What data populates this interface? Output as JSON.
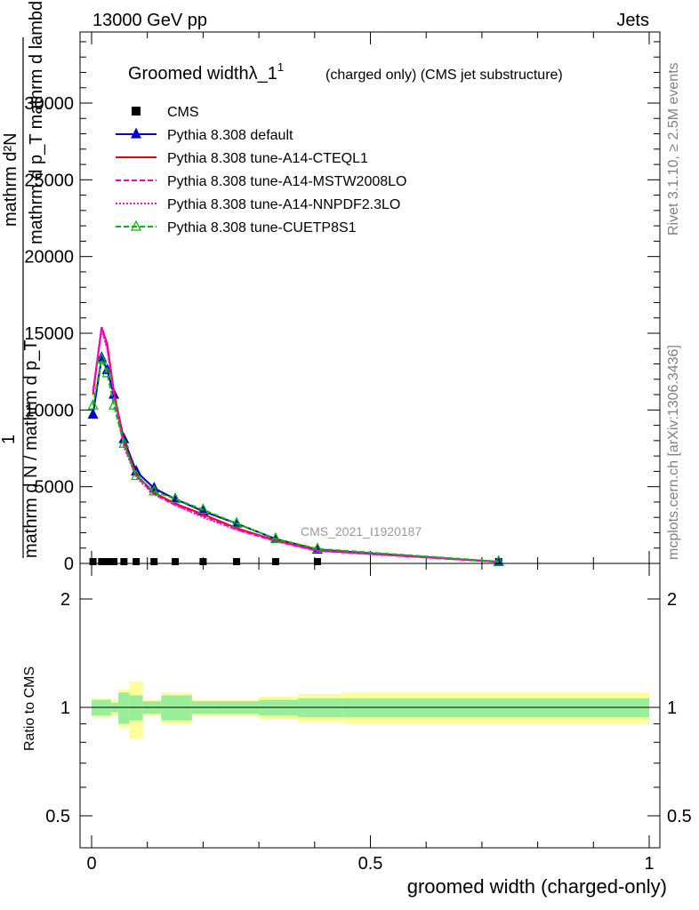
{
  "header": {
    "energy_label": "13000 GeV pp",
    "category_label": "Jets"
  },
  "side": {
    "rivet_label": "Rivet 3.1.10, ≥ 2.5M events",
    "mcplots_label": "mcplots.cern.ch [arXiv:1306.3436]"
  },
  "chart_data": {
    "type": "line",
    "title": "Groomed widthλ_1",
    "title_sup": "1",
    "subtitle": "(charged only) (CMS jet substructure)",
    "watermark": "CMS_2021_I1920187",
    "xlabel": "groomed width (charged-only)",
    "ylabel_top": "mathrm d²N",
    "ylabel_top2": "mathrm d p_T mathrm d lambda",
    "ylabel_unit": "1",
    "ylabel_bottom": "mathrm d N / mathrm d p_T",
    "ratio_ylabel": "Ratio to CMS",
    "xlim": [
      -0.025,
      1.0
    ],
    "ylim": [
      0,
      35000
    ],
    "ratio_ylim": [
      0.4,
      2.4
    ],
    "x_ticks": [
      "0",
      "0.5",
      "1"
    ],
    "y_ticks": [
      "0",
      "5000",
      "10000",
      "15000",
      "20000",
      "25000",
      "30000"
    ],
    "ratio_ticks": [
      "0.5",
      "1",
      "2"
    ],
    "x": [
      0.0025,
      0.018,
      0.028,
      0.04,
      0.058,
      0.08,
      0.112,
      0.15,
      0.2,
      0.26,
      0.33,
      0.405,
      0.73
    ],
    "series": [
      {
        "name": "CMS",
        "color": "#000000",
        "marker": "square",
        "values": [
          0,
          0,
          0,
          0,
          0,
          0,
          0,
          0,
          0,
          0,
          0,
          0,
          0
        ]
      },
      {
        "name": "Pythia 8.308 default",
        "color": "#0000cc",
        "marker": "triangle",
        "dash": "",
        "values": [
          9700,
          13400,
          12600,
          11000,
          8100,
          6000,
          4900,
          4200,
          3400,
          2600,
          1600,
          900,
          100
        ]
      },
      {
        "name": "Pythia 8.308 tune-A14-CTEQL1",
        "color": "#ee0000",
        "marker": "none",
        "dash": "",
        "values": [
          11000,
          15400,
          14300,
          11200,
          7900,
          5800,
          4600,
          3900,
          3200,
          2300,
          1500,
          850,
          100
        ]
      },
      {
        "name": "Pythia 8.308 tune-A14-MSTW2008LO",
        "color": "#ee00cc",
        "marker": "none",
        "dash": "6,3",
        "values": [
          11200,
          15400,
          14100,
          11000,
          7700,
          5700,
          4500,
          3800,
          3100,
          2200,
          1450,
          820,
          100
        ]
      },
      {
        "name": "Pythia 8.308 tune-A14-NNPDF2.3LO",
        "color": "#ff00ff",
        "marker": "none",
        "dash": "2,2",
        "values": [
          11300,
          15200,
          14000,
          10900,
          7600,
          5600,
          4500,
          3800,
          3000,
          2200,
          1450,
          820,
          100
        ]
      },
      {
        "name": "Pythia 8.308 tune-CUETP8S1",
        "color": "#00bb00",
        "marker": "triangle-open",
        "dash": "6,3",
        "values": [
          10300,
          13300,
          12400,
          10300,
          7800,
          5700,
          4700,
          4200,
          3500,
          2600,
          1600,
          950,
          120
        ]
      }
    ],
    "ratio_band_x_edges": [
      0.0,
      0.035,
      0.048,
      0.068,
      0.092,
      0.125,
      0.18,
      0.22,
      0.3,
      0.37,
      0.45,
      1.0
    ],
    "ratio_band_stat": [
      0.05,
      0.03,
      0.1,
      0.08,
      0.04,
      0.08,
      0.04,
      0.04,
      0.05,
      0.06,
      0.06
    ],
    "ratio_band_total": [
      0.06,
      0.05,
      0.12,
      0.18,
      0.05,
      0.1,
      0.05,
      0.05,
      0.07,
      0.09,
      0.1
    ],
    "legend_position": "top-left"
  }
}
